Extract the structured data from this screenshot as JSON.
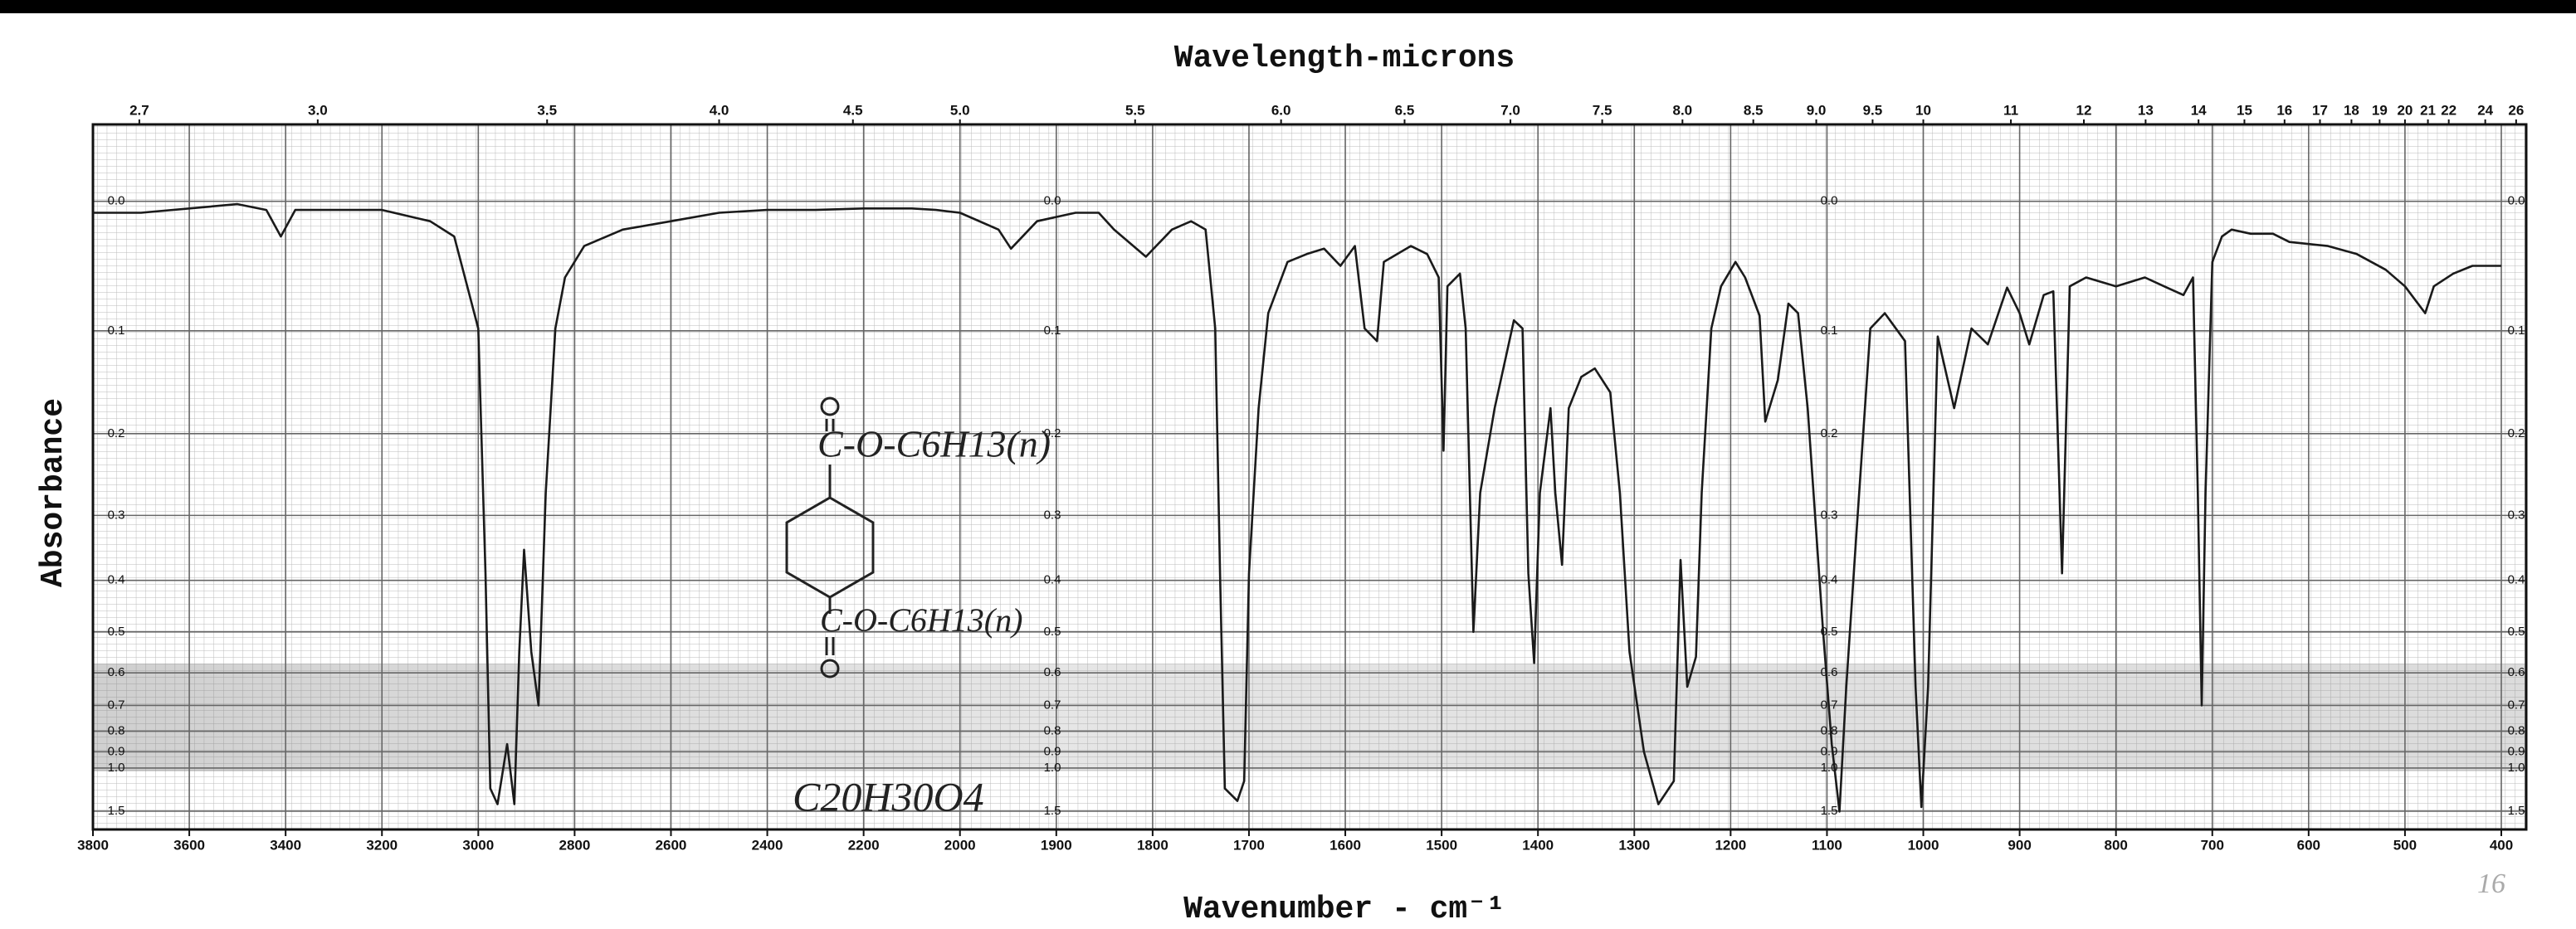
{
  "chart_data": {
    "type": "line",
    "x2_label": "Wavelength-microns",
    "y_label": "Absorbance",
    "x_label": "Wavenumber - cm⁻¹",
    "annotations": [
      "C-O-C6H13(n)",
      "C-O-C6H13(n)",
      "C20H30O4",
      "16"
    ],
    "xlim": [
      3800,
      400
    ],
    "xticks": [
      3800,
      3600,
      3400,
      3200,
      3000,
      2800,
      2600,
      2400,
      2200,
      2000,
      1900,
      1800,
      1700,
      1600,
      1500,
      1400,
      1300,
      1200,
      1100,
      1000,
      900,
      800,
      700,
      600,
      500,
      400
    ],
    "x2ticks": [
      2.7,
      {
        "value": 3,
        "label": "3.0"
      },
      3.5,
      {
        "value": 4,
        "label": "4.0"
      },
      4.5,
      {
        "value": 5,
        "label": "5.0"
      },
      5.5,
      {
        "value": 6,
        "label": "6.0"
      },
      6.5,
      {
        "value": 7,
        "label": "7.0"
      },
      7.5,
      {
        "value": 8,
        "label": "8.0"
      },
      8.5,
      {
        "value": 9,
        "label": "9.0"
      },
      9.5,
      10,
      11,
      12,
      13,
      14,
      15,
      16,
      17,
      18,
      19,
      20,
      21,
      22,
      24,
      26
    ],
    "ylim": [
      -0.05,
      2.6
    ],
    "yscale": "transmittance",
    "yticks": [
      {
        "value": 0,
        "label": "0.0"
      },
      0.1,
      0.2,
      0.3,
      0.4,
      0.5,
      0.6,
      0.7,
      0.8,
      0.9,
      {
        "value": 1,
        "label": "1.0"
      },
      1.5
    ],
    "grid": true,
    "color": "#1a1a1a",
    "x": [
      3800,
      3700,
      3500,
      3440,
      3410,
      3380,
      3200,
      3100,
      3050,
      3000,
      2985,
      2975,
      2960,
      2940,
      2925,
      2915,
      2905,
      2890,
      2875,
      2860,
      2840,
      2820,
      2780,
      2700,
      2600,
      2500,
      2400,
      2300,
      2200,
      2100,
      2050,
      2000,
      1960,
      1947,
      1920,
      1880,
      1856,
      1840,
      1820,
      1807,
      1780,
      1760,
      1745,
      1735,
      1730,
      1725,
      1712,
      1705,
      1700,
      1690,
      1680,
      1660,
      1640,
      1622,
      1605,
      1590,
      1580,
      1567,
      1560,
      1532,
      1515,
      1503,
      1498,
      1494,
      1481,
      1475,
      1467,
      1460,
      1445,
      1425,
      1416,
      1410,
      1404,
      1398,
      1387,
      1382,
      1375,
      1368,
      1355,
      1341,
      1325,
      1315,
      1305,
      1290,
      1275,
      1259,
      1252,
      1245,
      1236,
      1230,
      1220,
      1210,
      1195,
      1185,
      1170,
      1164,
      1151,
      1140,
      1130,
      1120,
      1104,
      1095,
      1087,
      1080,
      1070,
      1055,
      1040,
      1019,
      1008,
      1002,
      995,
      985,
      968,
      950,
      933,
      913,
      900,
      890,
      875,
      865,
      856,
      848,
      831,
      800,
      770,
      750,
      730,
      720,
      715,
      711,
      707,
      700,
      690,
      680,
      660,
      637,
      620,
      580,
      550,
      520,
      500,
      479,
      470,
      450,
      430,
      410,
      400
    ],
    "values": [
      0.008,
      0.008,
      0.002,
      0.006,
      0.025,
      0.006,
      0.006,
      0.014,
      0.025,
      0.098,
      0.388,
      1.17,
      1.37,
      0.86,
      1.37,
      0.546,
      0.35,
      0.546,
      0.7,
      0.27,
      0.098,
      0.056,
      0.032,
      0.02,
      0.014,
      0.008,
      0.006,
      0.006,
      0.005,
      0.005,
      0.006,
      0.008,
      0.02,
      0.034,
      0.014,
      0.008,
      0.008,
      0.02,
      0.032,
      0.04,
      0.02,
      0.014,
      0.02,
      0.098,
      0.388,
      1.17,
      1.32,
      1.1,
      0.388,
      0.173,
      0.085,
      0.044,
      0.038,
      0.034,
      0.047,
      0.032,
      0.098,
      0.109,
      0.044,
      0.032,
      0.038,
      0.056,
      0.219,
      0.063,
      0.053,
      0.098,
      0.5,
      0.27,
      0.173,
      0.091,
      0.098,
      0.388,
      0.574,
      0.27,
      0.173,
      0.27,
      0.374,
      0.173,
      0.142,
      0.134,
      0.157,
      0.27,
      0.546,
      0.9,
      1.37,
      1.1,
      0.366,
      0.64,
      0.558,
      0.27,
      0.098,
      0.063,
      0.044,
      0.056,
      0.087,
      0.187,
      0.145,
      0.077,
      0.085,
      0.173,
      0.5,
      0.86,
      1.51,
      0.64,
      0.337,
      0.098,
      0.085,
      0.109,
      0.64,
      1.42,
      0.64,
      0.105,
      0.173,
      0.098,
      0.112,
      0.064,
      0.085,
      0.112,
      0.07,
      0.067,
      0.388,
      0.063,
      0.056,
      0.063,
      0.056,
      0.063,
      0.07,
      0.056,
      0.27,
      0.7,
      0.27,
      0.044,
      0.025,
      0.02,
      0.023,
      0.023,
      0.029,
      0.032,
      0.038,
      0.05,
      0.063,
      0.085,
      0.063,
      0.053,
      0.047,
      0.047,
      0.047
    ]
  }
}
